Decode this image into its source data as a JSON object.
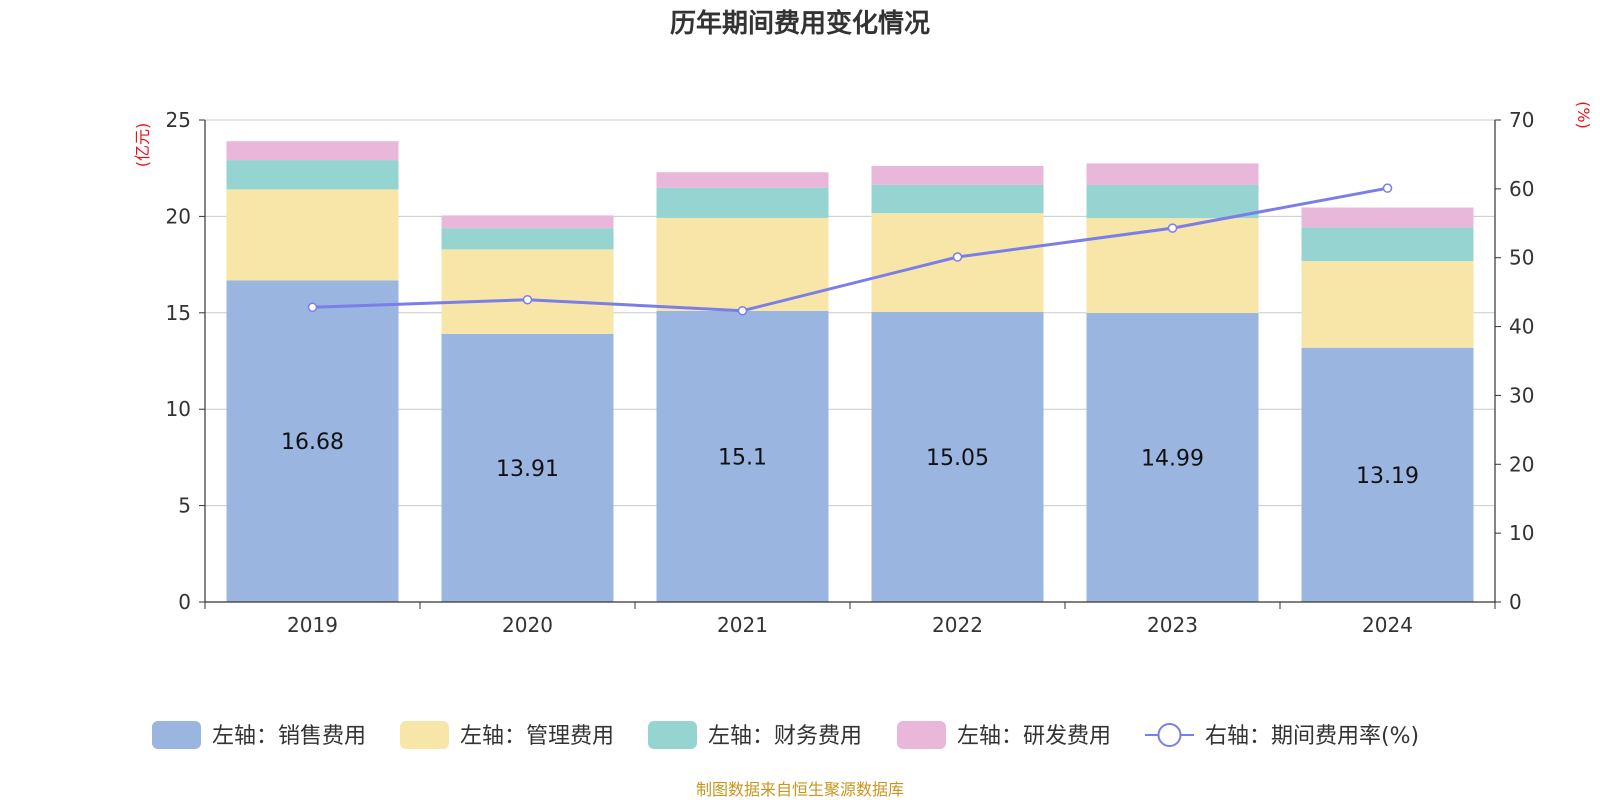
{
  "chart_data": {
    "type": "bar",
    "stacked": true,
    "title": "历年期间费用变化情况",
    "categories": [
      "2019",
      "2020",
      "2021",
      "2022",
      "2023",
      "2024"
    ],
    "y_left": {
      "label": "(亿元)",
      "min": 0,
      "max": 25,
      "ticks": [
        0,
        5,
        10,
        15,
        20,
        25
      ]
    },
    "y_right": {
      "label": "(%)",
      "min": 0,
      "max": 70,
      "ticks": [
        0,
        10,
        20,
        30,
        40,
        50,
        60,
        70
      ]
    },
    "grid": true,
    "series": [
      {
        "name": "左轴：销售费用",
        "axis": "left",
        "type": "bar",
        "color": "#9ab6e0",
        "values": [
          16.68,
          13.91,
          15.1,
          15.05,
          14.99,
          13.19
        ],
        "show_labels": true
      },
      {
        "name": "左轴：管理费用",
        "axis": "left",
        "type": "bar",
        "color": "#f7e6a8",
        "values": [
          4.72,
          4.38,
          4.82,
          5.12,
          4.92,
          4.49
        ],
        "show_labels": false
      },
      {
        "name": "左轴：财务费用",
        "axis": "left",
        "type": "bar",
        "color": "#96d4d2",
        "values": [
          1.52,
          1.1,
          1.57,
          1.47,
          1.72,
          1.74
        ],
        "show_labels": false
      },
      {
        "name": "左轴：研发费用",
        "axis": "left",
        "type": "bar",
        "color": "#e8b7da",
        "values": [
          0.98,
          0.66,
          0.8,
          0.97,
          1.12,
          1.04
        ],
        "show_labels": false
      },
      {
        "name": "右轴：期间费用率(%)",
        "axis": "right",
        "type": "line",
        "color": "#7a7ee8",
        "values": [
          42.8,
          43.9,
          42.3,
          50.1,
          54.3,
          60.1
        ]
      }
    ],
    "legend_position": "bottom",
    "source": "制图数据来自恒生聚源数据库"
  }
}
